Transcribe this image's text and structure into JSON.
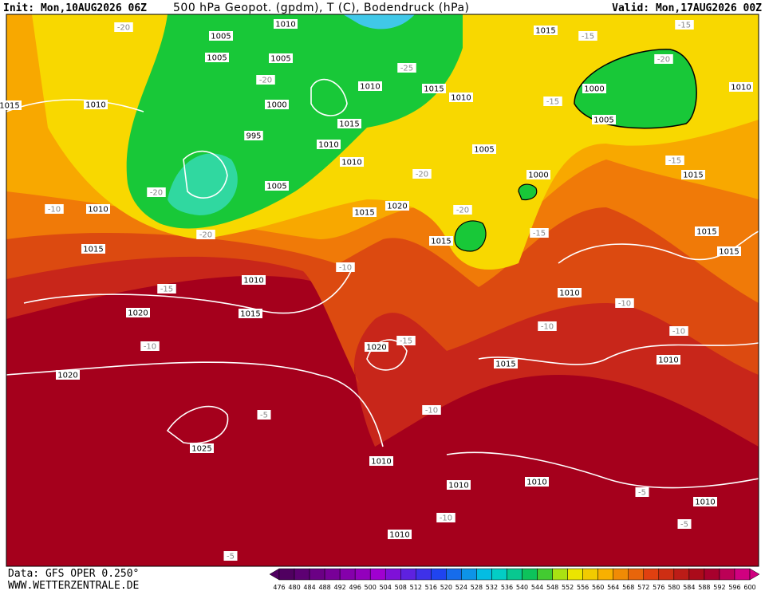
{
  "header": {
    "init": "Init: Mon,10AUG2026 06Z",
    "title": "500 hPa Geopot. (gpdm), T (C), Bodendruck (hPa)",
    "valid": "Valid: Mon,17AUG2026 00Z"
  },
  "footer": {
    "data": "Data: GFS OPER 0.250°",
    "site": "WWW.WETTERZENTRALE.DE"
  },
  "colorbar": {
    "labels": [
      476,
      480,
      484,
      488,
      492,
      496,
      500,
      504,
      508,
      512,
      516,
      520,
      524,
      528,
      532,
      536,
      540,
      544,
      548,
      552,
      556,
      560,
      564,
      568,
      572,
      576,
      580,
      584,
      588,
      592,
      596,
      600
    ]
  },
  "map_labels": [
    "1005",
    "1010",
    "1005",
    "1005",
    "-20",
    "1010",
    "1000",
    "995",
    "1015",
    "1010",
    "1010",
    "1005",
    "-20",
    "-20",
    "1010",
    "-10",
    "1010",
    "1015",
    "1010",
    "-15",
    "1020",
    "1015",
    "-10",
    "1020",
    "-10",
    "1020",
    "-15",
    "1015",
    "1020",
    "-25",
    "1015",
    "1010",
    "1015",
    "-15",
    "-15",
    "-20",
    "1000",
    "1005",
    "-15",
    "1005",
    "-20",
    "1000",
    "-20",
    "1015",
    "-15",
    "1015",
    "-15",
    "1015",
    "1015",
    "1010",
    "-10",
    "-10",
    "-10",
    "1010",
    "1015",
    "-10",
    "-5",
    "1025",
    "1010",
    "1010",
    "1010",
    "-5",
    "1010",
    "-5",
    "-10",
    "1010",
    "-5",
    "1010",
    "1015",
    "-20"
  ]
}
